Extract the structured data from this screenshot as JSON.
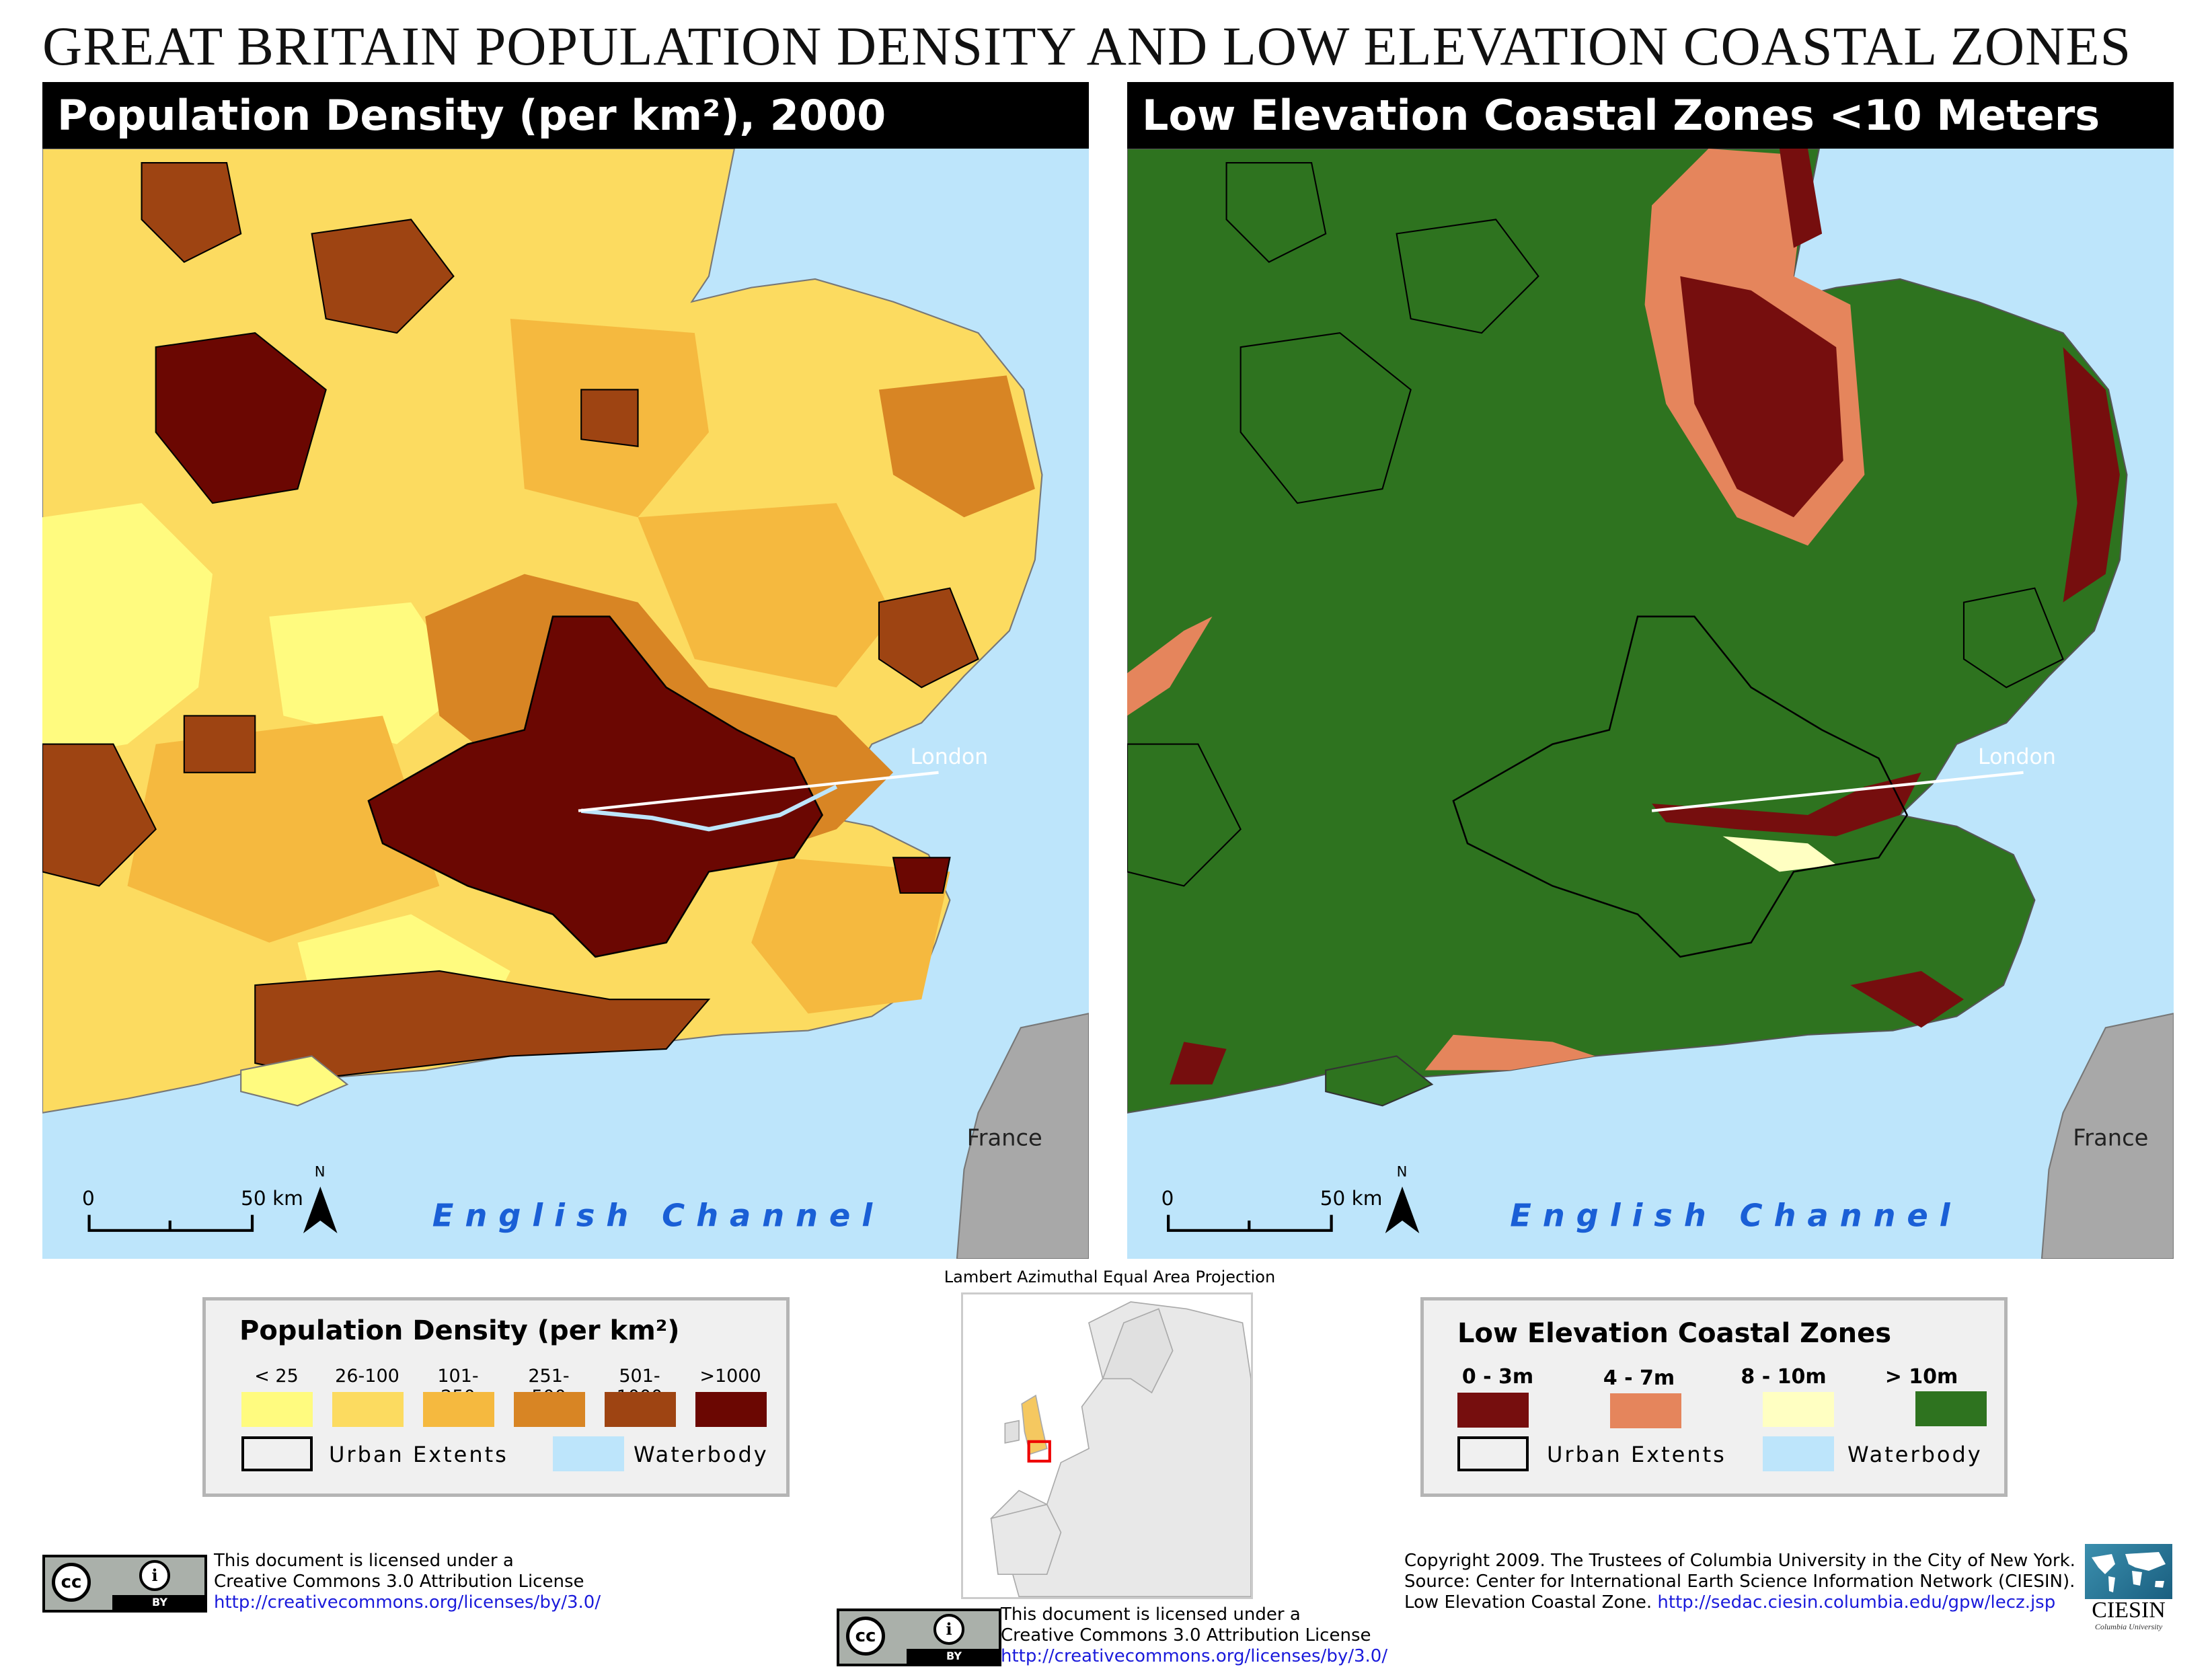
{
  "title": "GREAT BRITAIN POPULATION DENSITY AND LOW ELEVATION COASTAL ZONES",
  "left_map": {
    "header": "Population Density (per km²), 2000",
    "city_label": "London",
    "country_label": "France",
    "sea_label": "English Channel",
    "scale_start": "0",
    "scale_end": "50 km",
    "north": "N"
  },
  "right_map": {
    "header": "Low Elevation Coastal Zones <10 Meters",
    "city_label": "London",
    "country_label": "France",
    "sea_label": "English Channel",
    "scale_start": "0",
    "scale_end": "50 km",
    "north": "N"
  },
  "projection": "Lambert Azimuthal Equal Area Projection",
  "legend_pop": {
    "title": "Population Density (per km²)",
    "classes": [
      {
        "label": "< 25",
        "color": "#fffb7f"
      },
      {
        "label": "26-100",
        "color": "#fcdb60"
      },
      {
        "label": "101-250",
        "color": "#f5b93f"
      },
      {
        "label": "251-500",
        "color": "#d88524"
      },
      {
        "label": "501-1000",
        "color": "#9e4412"
      },
      {
        "label": ">1000",
        "color": "#6b0702"
      }
    ],
    "urban": "Urban Extents",
    "water": "Waterbody",
    "water_color": "#bde5fb"
  },
  "legend_lecz": {
    "title": "Low Elevation Coastal Zones",
    "classes": [
      {
        "label": "0 - 3m",
        "color": "#760e0e"
      },
      {
        "label": "4 - 7m",
        "color": "#e5855c"
      },
      {
        "label": "8 - 10m",
        "color": "#ffffc2"
      },
      {
        "label": "> 10m",
        "color": "#2e731f"
      }
    ],
    "urban": "Urban Extents",
    "water": "Waterbody"
  },
  "license_left": {
    "line1": "This document is licensed under a",
    "line2": "Creative Commons 3.0 Attribution License",
    "url": "http://creativecommons.org/licenses/by/3.0/",
    "cc": "cc",
    "by": "BY"
  },
  "license_center": {
    "line1": "This document is licensed under a",
    "line2": "Creative Commons 3.0 Attribution License",
    "url": "http://creativecommons.org/licenses/by/3.0/",
    "cc": "cc",
    "by": "BY"
  },
  "credits": {
    "line1": "Copyright 2009. The Trustees of Columbia University in the City of New York.",
    "line2": "Source: Center for International Earth Science Information Network (CIESIN).",
    "line3_text": "Low Elevation Coastal Zone. ",
    "line3_url": "http://sedac.ciesin.columbia.edu/gpw/lecz.jsp",
    "logo": "CIESIN",
    "logo_sub": "Columbia University"
  }
}
